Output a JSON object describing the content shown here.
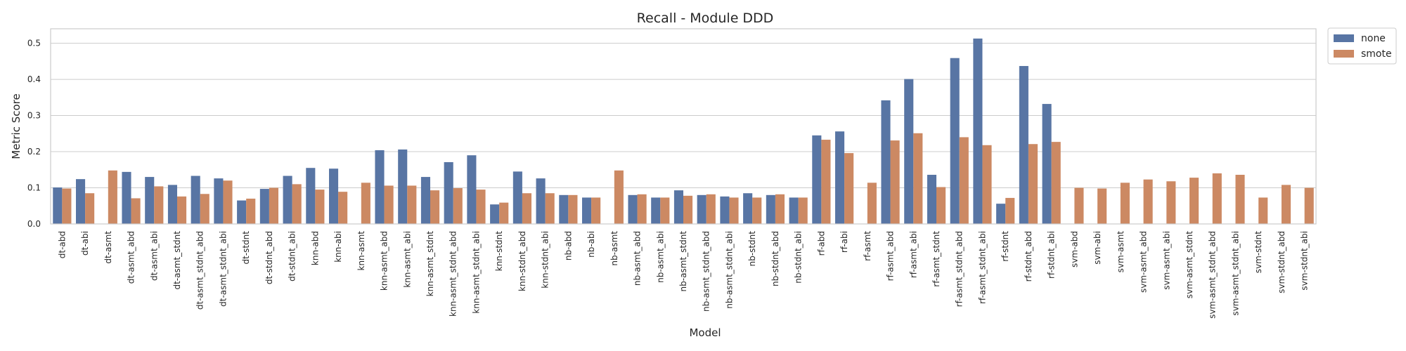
{
  "chart_data": {
    "type": "bar",
    "title": "Recall - Module DDD",
    "xlabel": "Model",
    "ylabel": "Metric Score",
    "ylim": [
      0,
      0.54
    ],
    "yticks": [
      0.0,
      0.1,
      0.2,
      0.3,
      0.4,
      0.5
    ],
    "ytick_labels": [
      "0.0",
      "0.1",
      "0.2",
      "0.3",
      "0.4",
      "0.5"
    ],
    "grid": true,
    "legend_position": "outside-top-right",
    "categories": [
      "dt-abd",
      "dt-abi",
      "dt-asmt",
      "dt-asmt_abd",
      "dt-asmt_abi",
      "dt-asmt_stdnt",
      "dt-asmt_stdnt_abd",
      "dt-asmt_stdnt_abi",
      "dt-stdnt",
      "dt-stdnt_abd",
      "dt-stdnt_abi",
      "knn-abd",
      "knn-abi",
      "knn-asmt",
      "knn-asmt_abd",
      "knn-asmt_abi",
      "knn-asmt_stdnt",
      "knn-asmt_stdnt_abd",
      "knn-asmt_stdnt_abi",
      "knn-stdnt",
      "knn-stdnt_abd",
      "knn-stdnt_abi",
      "nb-abd",
      "nb-abi",
      "nb-asmt",
      "nb-asmt_abd",
      "nb-asmt_abi",
      "nb-asmt_stdnt",
      "nb-asmt_stdnt_abd",
      "nb-asmt_stdnt_abi",
      "nb-stdnt",
      "nb-stdnt_abd",
      "nb-stdnt_abi",
      "rf-abd",
      "rf-abi",
      "rf-asmt",
      "rf-asmt_abd",
      "rf-asmt_abi",
      "rf-asmt_stdnt",
      "rf-asmt_stdnt_abd",
      "rf-asmt_stdnt_abi",
      "rf-stdnt",
      "rf-stdnt_abd",
      "rf-stdnt_abi",
      "svm-abd",
      "svm-abi",
      "svm-asmt",
      "svm-asmt_abd",
      "svm-asmt_abi",
      "svm-asmt_stdnt",
      "svm-asmt_stdnt_abd",
      "svm-asmt_stdnt_abi",
      "svm-stdnt",
      "svm-stdnt_abd",
      "svm-stdnt_abi"
    ],
    "series": [
      {
        "name": "none",
        "color": "#5875a4",
        "values": [
          0.101,
          0.124,
          null,
          0.144,
          0.13,
          0.108,
          0.133,
          0.126,
          0.065,
          0.097,
          0.133,
          0.155,
          0.153,
          null,
          0.204,
          0.206,
          0.13,
          0.171,
          0.19,
          0.054,
          0.145,
          0.126,
          0.08,
          0.073,
          null,
          0.08,
          0.073,
          0.093,
          0.08,
          0.076,
          0.085,
          0.08,
          0.073,
          0.245,
          0.256,
          null,
          0.342,
          0.401,
          0.136,
          0.459,
          0.513,
          0.056,
          0.437,
          0.332,
          null,
          null,
          null,
          null,
          null,
          null,
          null,
          null,
          null,
          null,
          null
        ]
      },
      {
        "name": "smote",
        "color": "#cc8963",
        "values": [
          0.098,
          0.085,
          0.148,
          0.071,
          0.104,
          0.076,
          0.083,
          0.12,
          0.07,
          0.1,
          0.11,
          0.095,
          0.089,
          0.114,
          0.106,
          0.106,
          0.093,
          0.099,
          0.095,
          0.059,
          0.085,
          0.085,
          0.08,
          0.073,
          0.148,
          0.082,
          0.073,
          0.078,
          0.082,
          0.073,
          0.073,
          0.082,
          0.073,
          0.233,
          0.196,
          0.114,
          0.231,
          0.251,
          0.102,
          0.24,
          0.218,
          0.072,
          0.221,
          0.227,
          0.1,
          0.098,
          0.114,
          0.123,
          0.118,
          0.128,
          0.14,
          0.136,
          0.073,
          0.108,
          0.1
        ]
      }
    ]
  }
}
